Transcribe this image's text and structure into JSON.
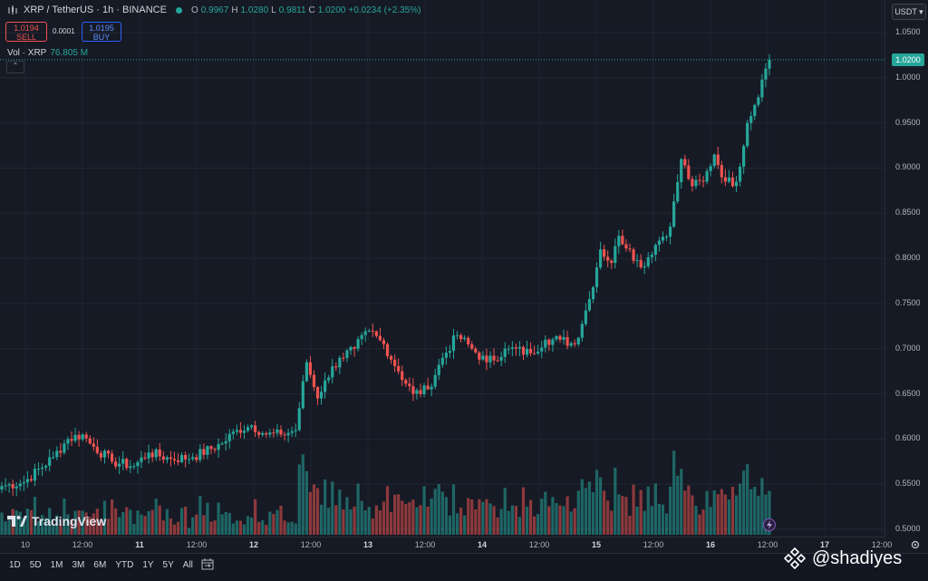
{
  "header": {
    "symbol": "XRP / TetherUS · 1h · BINANCE",
    "ohlc": [
      {
        "key": "O",
        "value": "0.9967"
      },
      {
        "key": "H",
        "value": "1.0280"
      },
      {
        "key": "L",
        "value": "0.9811"
      },
      {
        "key": "C",
        "value": "1.0200"
      }
    ],
    "change": "+0.0234 (+2.35%)"
  },
  "trade": {
    "sell_price": "1.0194",
    "sell_label": "SELL",
    "spread": "0.0001",
    "buy_price": "1.0195",
    "buy_label": "BUY"
  },
  "volume": {
    "label": "Vol · XRP",
    "value": "76.805 M"
  },
  "currency": "USDT",
  "last_price": "1.0200",
  "watermark": "TradingView",
  "overlay_handle": "@shadiyes",
  "range_buttons": [
    "1D",
    "5D",
    "1M",
    "3M",
    "6M",
    "YTD",
    "1Y",
    "5Y",
    "All"
  ],
  "colors": {
    "up": "#26a69a",
    "down": "#ef5350",
    "background": "#161a25"
  },
  "icons": [
    "candles-icon",
    "calendar-range-icon",
    "settings-gear-icon",
    "lightning-icon",
    "binance-logo-icon",
    "tradingview-logo-icon"
  ],
  "chart_data": {
    "type": "candlestick",
    "title": "XRP / TetherUS · 1h · BINANCE",
    "y_ticks": [
      "1.0500",
      "1.0000",
      "0.9500",
      "0.9000",
      "0.8500",
      "0.8000",
      "0.7500",
      "0.7000",
      "0.6500",
      "0.6000",
      "0.5500",
      "0.5000"
    ],
    "ylim": [
      0.495,
      1.055
    ],
    "x_ticks": [
      "10",
      "12:00",
      "11",
      "12:00",
      "12",
      "12:00",
      "13",
      "12:00",
      "14",
      "12:00",
      "15",
      "12:00",
      "16",
      "12:00",
      "17",
      "12:00"
    ],
    "x_day_labels": [
      "11",
      "12",
      "13",
      "14",
      "15",
      "16",
      "17"
    ],
    "grid": true,
    "close_anchors": [
      [
        0,
        0.548
      ],
      [
        6,
        0.552
      ],
      [
        14,
        0.58
      ],
      [
        18,
        0.6
      ],
      [
        22,
        0.605
      ],
      [
        24,
        0.595
      ],
      [
        30,
        0.575
      ],
      [
        36,
        0.57
      ],
      [
        40,
        0.585
      ],
      [
        46,
        0.578
      ],
      [
        52,
        0.58
      ],
      [
        60,
        0.595
      ],
      [
        64,
        0.61
      ],
      [
        68,
        0.615
      ],
      [
        72,
        0.605
      ],
      [
        76,
        0.605
      ],
      [
        80,
        0.61
      ],
      [
        83,
        0.685
      ],
      [
        86,
        0.645
      ],
      [
        88,
        0.665
      ],
      [
        92,
        0.69
      ],
      [
        96,
        0.7
      ],
      [
        100,
        0.72
      ],
      [
        104,
        0.705
      ],
      [
        108,
        0.675
      ],
      [
        112,
        0.65
      ],
      [
        116,
        0.655
      ],
      [
        120,
        0.69
      ],
      [
        124,
        0.715
      ],
      [
        128,
        0.7
      ],
      [
        132,
        0.685
      ],
      [
        138,
        0.7
      ],
      [
        144,
        0.695
      ],
      [
        148,
        0.71
      ],
      [
        152,
        0.71
      ],
      [
        156,
        0.705
      ],
      [
        160,
        0.755
      ],
      [
        163,
        0.81
      ],
      [
        166,
        0.795
      ],
      [
        168,
        0.825
      ],
      [
        171,
        0.81
      ],
      [
        174,
        0.79
      ],
      [
        178,
        0.815
      ],
      [
        182,
        0.835
      ],
      [
        185,
        0.91
      ],
      [
        188,
        0.88
      ],
      [
        191,
        0.885
      ],
      [
        194,
        0.915
      ],
      [
        197,
        0.885
      ],
      [
        200,
        0.885
      ],
      [
        203,
        0.95
      ],
      [
        205,
        0.97
      ],
      [
        207,
        0.998
      ],
      [
        209,
        1.02
      ]
    ]
  }
}
